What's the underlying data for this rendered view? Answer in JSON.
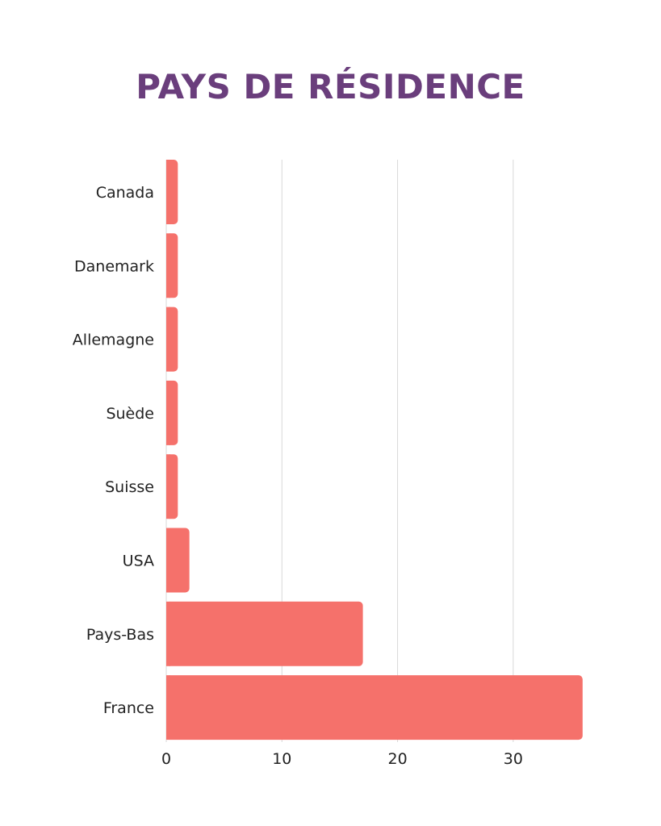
{
  "chart_data": {
    "type": "bar",
    "orientation": "horizontal",
    "title": "PAYS DE RÉSIDENCE",
    "categories": [
      "Canada",
      "Danemark",
      "Allemagne",
      "Suède",
      "Suisse",
      "USA",
      "Pays-Bas",
      "France"
    ],
    "values": [
      1,
      1,
      1,
      1,
      1,
      2,
      17,
      36
    ],
    "xlabel": "",
    "ylabel": "",
    "xlim": [
      0,
      36
    ],
    "x_ticks": [
      0,
      10,
      20,
      30
    ],
    "grid": true,
    "legend": "none"
  },
  "colors": {
    "bar": "#f5716b",
    "title": "#6a3e7c",
    "grid": "#d9d9d9",
    "text": "#222222"
  }
}
